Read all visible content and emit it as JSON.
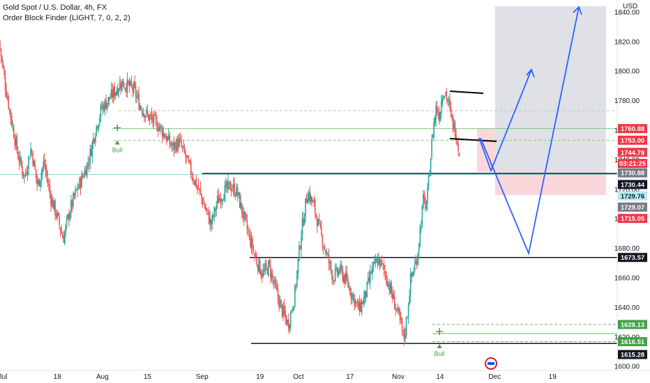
{
  "legend": {
    "symbol_line": "Gold Spot / U.S. Dollar, 4h, FX",
    "indicator_line": "Order Block Finder (LIGHT, 7, 0, 2, 2)"
  },
  "chart_data": {
    "type": "candlestick",
    "currency_label": "USD",
    "ylim": [
      1597,
      1848
    ],
    "y_ticks": [
      1600,
      1620,
      1640,
      1660,
      1680,
      1700,
      1720,
      1740,
      1760,
      1780,
      1800,
      1820,
      1840
    ],
    "x_ticks": [
      {
        "label": "Jul",
        "day": 0
      },
      {
        "label": "18",
        "day": 17
      },
      {
        "label": "Aug",
        "day": 31
      },
      {
        "label": "15",
        "day": 45
      },
      {
        "label": "Sep",
        "day": 62
      },
      {
        "label": "19",
        "day": 80
      },
      {
        "label": "Oct",
        "day": 92
      },
      {
        "label": "17",
        "day": 108
      },
      {
        "label": "Nov",
        "day": 123
      },
      {
        "label": "14",
        "day": 136
      },
      {
        "label": "Dec",
        "day": 153
      },
      {
        "label": "19",
        "day": 171
      }
    ],
    "xlim": [
      0,
      192
    ],
    "price_path": [
      [
        0,
        1820
      ],
      [
        2,
        1790
      ],
      [
        4,
        1765
      ],
      [
        6,
        1742
      ],
      [
        8,
        1728
      ],
      [
        10,
        1748
      ],
      [
        12,
        1722
      ],
      [
        14,
        1738
      ],
      [
        16,
        1715
      ],
      [
        18,
        1702
      ],
      [
        20,
        1686
      ],
      [
        22,
        1705
      ],
      [
        24,
        1718
      ],
      [
        26,
        1728
      ],
      [
        28,
        1740
      ],
      [
        30,
        1760
      ],
      [
        32,
        1775
      ],
      [
        34,
        1780
      ],
      [
        36,
        1786
      ],
      [
        38,
        1792
      ],
      [
        40,
        1790
      ],
      [
        42,
        1787
      ],
      [
        44,
        1776
      ],
      [
        46,
        1770
      ],
      [
        48,
        1766
      ],
      [
        50,
        1762
      ],
      [
        52,
        1755
      ],
      [
        54,
        1748
      ],
      [
        56,
        1752
      ],
      [
        58,
        1742
      ],
      [
        60,
        1730
      ],
      [
        62,
        1720
      ],
      [
        64,
        1708
      ],
      [
        66,
        1696
      ],
      [
        68,
        1712
      ],
      [
        70,
        1718
      ],
      [
        72,
        1722
      ],
      [
        74,
        1718
      ],
      [
        76,
        1702
      ],
      [
        78,
        1686
      ],
      [
        80,
        1672
      ],
      [
        82,
        1662
      ],
      [
        84,
        1668
      ],
      [
        86,
        1652
      ],
      [
        88,
        1638
      ],
      [
        90,
        1628
      ],
      [
        92,
        1648
      ],
      [
        94,
        1690
      ],
      [
        96,
        1718
      ],
      [
        98,
        1708
      ],
      [
        100,
        1690
      ],
      [
        102,
        1675
      ],
      [
        104,
        1660
      ],
      [
        106,
        1665
      ],
      [
        108,
        1658
      ],
      [
        110,
        1648
      ],
      [
        112,
        1638
      ],
      [
        114,
        1648
      ],
      [
        116,
        1665
      ],
      [
        118,
        1672
      ],
      [
        120,
        1664
      ],
      [
        122,
        1650
      ],
      [
        124,
        1636
      ],
      [
        125,
        1628
      ],
      [
        126,
        1618
      ],
      [
        127,
        1635
      ],
      [
        128,
        1658
      ],
      [
        130,
        1672
      ],
      [
        132,
        1712
      ],
      [
        133,
        1708
      ],
      [
        135,
        1760
      ],
      [
        136,
        1775
      ],
      [
        137,
        1770
      ],
      [
        138,
        1786
      ],
      [
        139,
        1785
      ],
      [
        140,
        1776
      ],
      [
        141,
        1765
      ],
      [
        142,
        1760
      ],
      [
        143,
        1747
      ]
    ],
    "levels": [
      {
        "price": 1773,
        "style": "dashed",
        "color": "#a5d6a7"
      },
      {
        "price": 1760.88,
        "style": "solid",
        "color": "#81c784"
      },
      {
        "price": 1753,
        "style": "dashed",
        "color": "#81c784"
      },
      {
        "price": 1730.44,
        "style": "solid",
        "color": "#131722"
      },
      {
        "price": 1729.76,
        "style": "solid",
        "color": "#7fd3e0"
      },
      {
        "price": 1673.57,
        "style": "solid",
        "color": "#131722"
      },
      {
        "price": 1628.13,
        "style": "dashed",
        "color": "#66bb6a"
      },
      {
        "price": 1622,
        "style": "solid",
        "color": "#66bb6a"
      },
      {
        "price": 1616.51,
        "style": "dashed",
        "color": "#66bb6a"
      },
      {
        "price": 1615.28,
        "style": "solid",
        "color": "#131722"
      }
    ],
    "price_labels": [
      {
        "text": "1760.88",
        "bg": "#f23645",
        "fg": "#ffffff",
        "price": 1760.88
      },
      {
        "text": "1753.00",
        "bg": "#f23645",
        "fg": "#ffffff",
        "price": 1753.0
      },
      {
        "text": "1744.78",
        "bg": "#f23645",
        "fg": "#ffffff",
        "price": 1744.78
      },
      {
        "text": "03:21:25",
        "bg": "#f23645",
        "fg": "#ffffff",
        "price": 1737.3
      },
      {
        "text": "1730.88",
        "bg": "#787b86",
        "fg": "#ffffff",
        "price": 1730.88
      },
      {
        "text": "1730.44",
        "bg": "#131722",
        "fg": "#ffffff",
        "price": 1723.0
      },
      {
        "text": "1729.76",
        "bg": "#b2ebf2",
        "fg": "#131722",
        "price": 1715.3
      },
      {
        "text": "1729.07",
        "bg": "#787b86",
        "fg": "#ffffff",
        "price": 1707.7
      },
      {
        "text": "1715.05",
        "bg": "#f23645",
        "fg": "#ffffff",
        "price": 1700.0
      },
      {
        "text": "1673.57",
        "bg": "#131722",
        "fg": "#ffffff",
        "price": 1673.57
      },
      {
        "text": "1628.13",
        "bg": "#43a047",
        "fg": "#ffffff",
        "price": 1628.13
      },
      {
        "text": "1616.51",
        "bg": "#43a047",
        "fg": "#ffffff",
        "price": 1616.51
      },
      {
        "text": "1615.28",
        "bg": "#131722",
        "fg": "#ffffff",
        "price": 1607.8
      }
    ],
    "signals": [
      {
        "text": "Bull",
        "day": 36.5,
        "price": 1760,
        "color": "#43a047"
      },
      {
        "text": "Bull",
        "day": 136.7,
        "price": 1622,
        "color": "#43a047"
      }
    ],
    "current_price": 1744.78,
    "colors": {
      "up": "#26a69a",
      "down": "#ef5350",
      "projection": "#2962ff",
      "target_zone": "#d1d4dc",
      "stop_zone": "#f7cdd2"
    }
  }
}
